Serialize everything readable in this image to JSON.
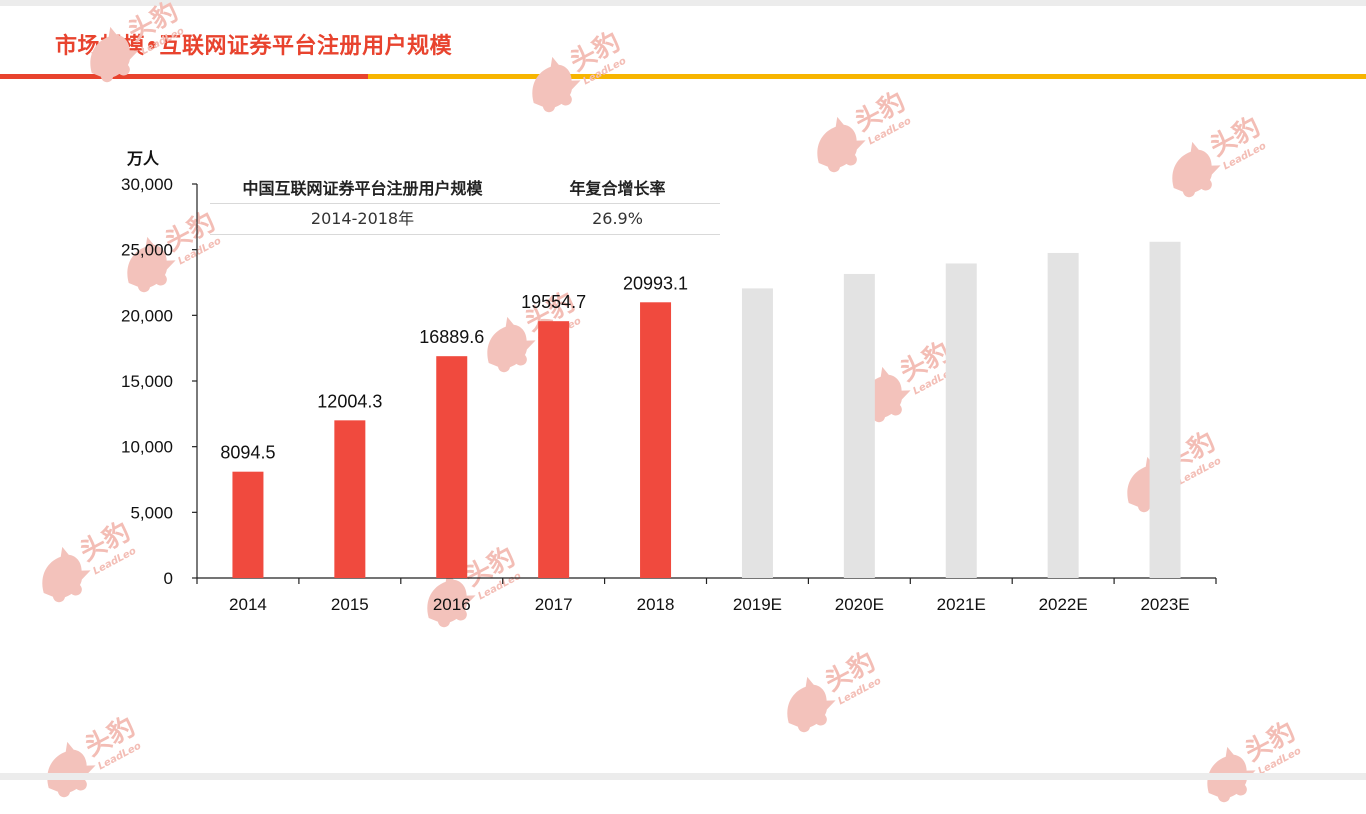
{
  "header": {
    "title": "市场规模•互联网证券平台注册用户规模"
  },
  "watermark": {
    "brand_cn": "头豹",
    "brand_en": "LeadLeo"
  },
  "colors": {
    "accent_red": "#e8432e",
    "accent_yellow": "#f7b500",
    "bar_actual": "#f04a3e",
    "bar_forecast": "#e3e3e3"
  },
  "chart_data": {
    "type": "bar",
    "unit_label": "万人",
    "categories": [
      "2014",
      "2015",
      "2016",
      "2017",
      "2018",
      "2019E",
      "2020E",
      "2021E",
      "2022E",
      "2023E"
    ],
    "values": [
      8094.5,
      12004.3,
      16889.6,
      19554.7,
      20993.1,
      22050,
      23150,
      23950,
      24750,
      25600
    ],
    "data_labels": [
      "8094.5",
      "12004.3",
      "16889.6",
      "19554.7",
      "20993.1",
      "",
      "",
      "",
      "",
      ""
    ],
    "forecast_from_index": 5,
    "ylim": [
      0,
      30000
    ],
    "yticks": [
      0,
      5000,
      10000,
      15000,
      20000,
      25000,
      30000
    ],
    "ytick_labels": [
      "0",
      "5,000",
      "10,000",
      "15,000",
      "20,000",
      "25,000",
      "30,000"
    ],
    "grid": false,
    "legend": "none"
  },
  "cagr_table": {
    "headers": [
      "中国互联网证券平台注册用户规模",
      "年复合增长率"
    ],
    "row": [
      "2014-2018年",
      "26.9%"
    ]
  }
}
